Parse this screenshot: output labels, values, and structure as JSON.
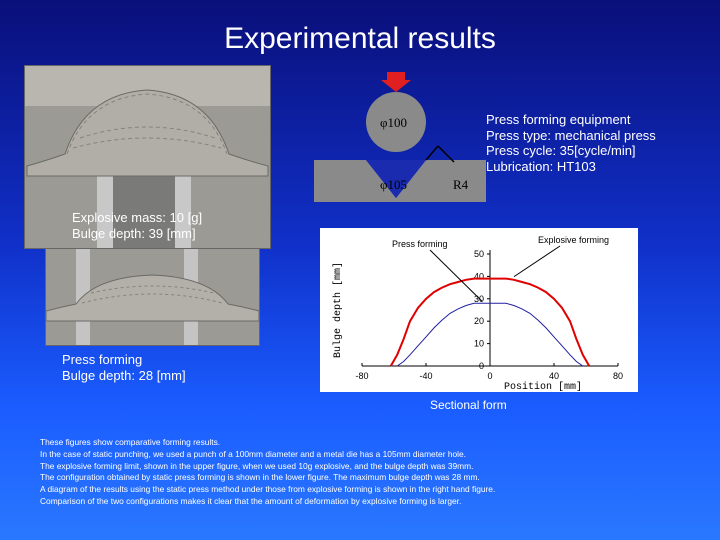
{
  "title": "Experimental results",
  "diagram": {
    "punch_label": "φ100",
    "die_label": "φ105",
    "radius_label": "R4"
  },
  "press_info": [
    "Press forming equipment",
    "Press type: mechanical press",
    "Press cycle: 35[cycle/min]",
    "Lubrication: HT103"
  ],
  "explosive_label": [
    "Explosive mass: 10 [g]",
    "Bulge depth: 39 [mm]"
  ],
  "press_label": [
    "Press forming",
    "Bulge depth: 28 [mm]"
  ],
  "caption": "Sectional form",
  "description": [
    "These figures show comparative forming results.",
    "In the case of  static punching, we used  a punch of  a 100mm diameter and a metal die has a 105mm diameter hole.",
    "The explosive forming limit, shown in the upper figure, when we used 10g explosive, and the bulge depth was 39mm.",
    "The configuration obtained by static press forming is shown in the lower figure. The maximum bulge depth was 28 mm.",
    "A diagram of the results using the static press method under those from explosive forming is shown in the right hand figure.",
    "Comparison of the two configurations makes it clear that the amount of deformation by explosive  forming is larger."
  ],
  "chart_data": {
    "type": "line",
    "xlabel": "Position [mm]",
    "ylabel": "Bulge depth [mm]",
    "xlim": [
      -80,
      80
    ],
    "ylim": [
      0,
      50
    ],
    "xticks": [
      "-80",
      "-40",
      "0",
      "40",
      "80"
    ],
    "yticks": [
      "0",
      "10",
      "20",
      "30",
      "40",
      "50"
    ],
    "annotations": [
      "Press forming",
      "Explosive forming"
    ],
    "series": [
      {
        "name": "Explosive forming",
        "color": "#e00000",
        "x": [
          -62,
          -58,
          -54,
          -50,
          -45,
          -40,
          -35,
          -30,
          -25,
          -20,
          -15,
          -10,
          -5,
          0,
          5,
          10,
          15,
          20,
          25,
          30,
          35,
          40,
          45,
          50,
          54,
          58,
          62
        ],
        "y": [
          0,
          5,
          12,
          20,
          26,
          30,
          33,
          35,
          36.5,
          37.5,
          38.5,
          39,
          39,
          39,
          39,
          39,
          38.5,
          37.5,
          36.5,
          35,
          33,
          30,
          26,
          20,
          12,
          5,
          0
        ]
      },
      {
        "name": "Press forming",
        "color": "#2020a0",
        "x": [
          -58,
          -54,
          -50,
          -45,
          -40,
          -35,
          -30,
          -25,
          -20,
          -15,
          -10,
          -5,
          0,
          5,
          10,
          15,
          20,
          25,
          30,
          35,
          40,
          45,
          50,
          54,
          58
        ],
        "y": [
          0,
          2,
          5,
          9,
          13,
          17,
          20.5,
          23.5,
          25.5,
          27,
          28,
          28,
          28,
          28,
          28,
          27,
          25.5,
          23.5,
          20.5,
          17,
          13,
          9,
          5,
          2,
          0
        ]
      }
    ]
  }
}
